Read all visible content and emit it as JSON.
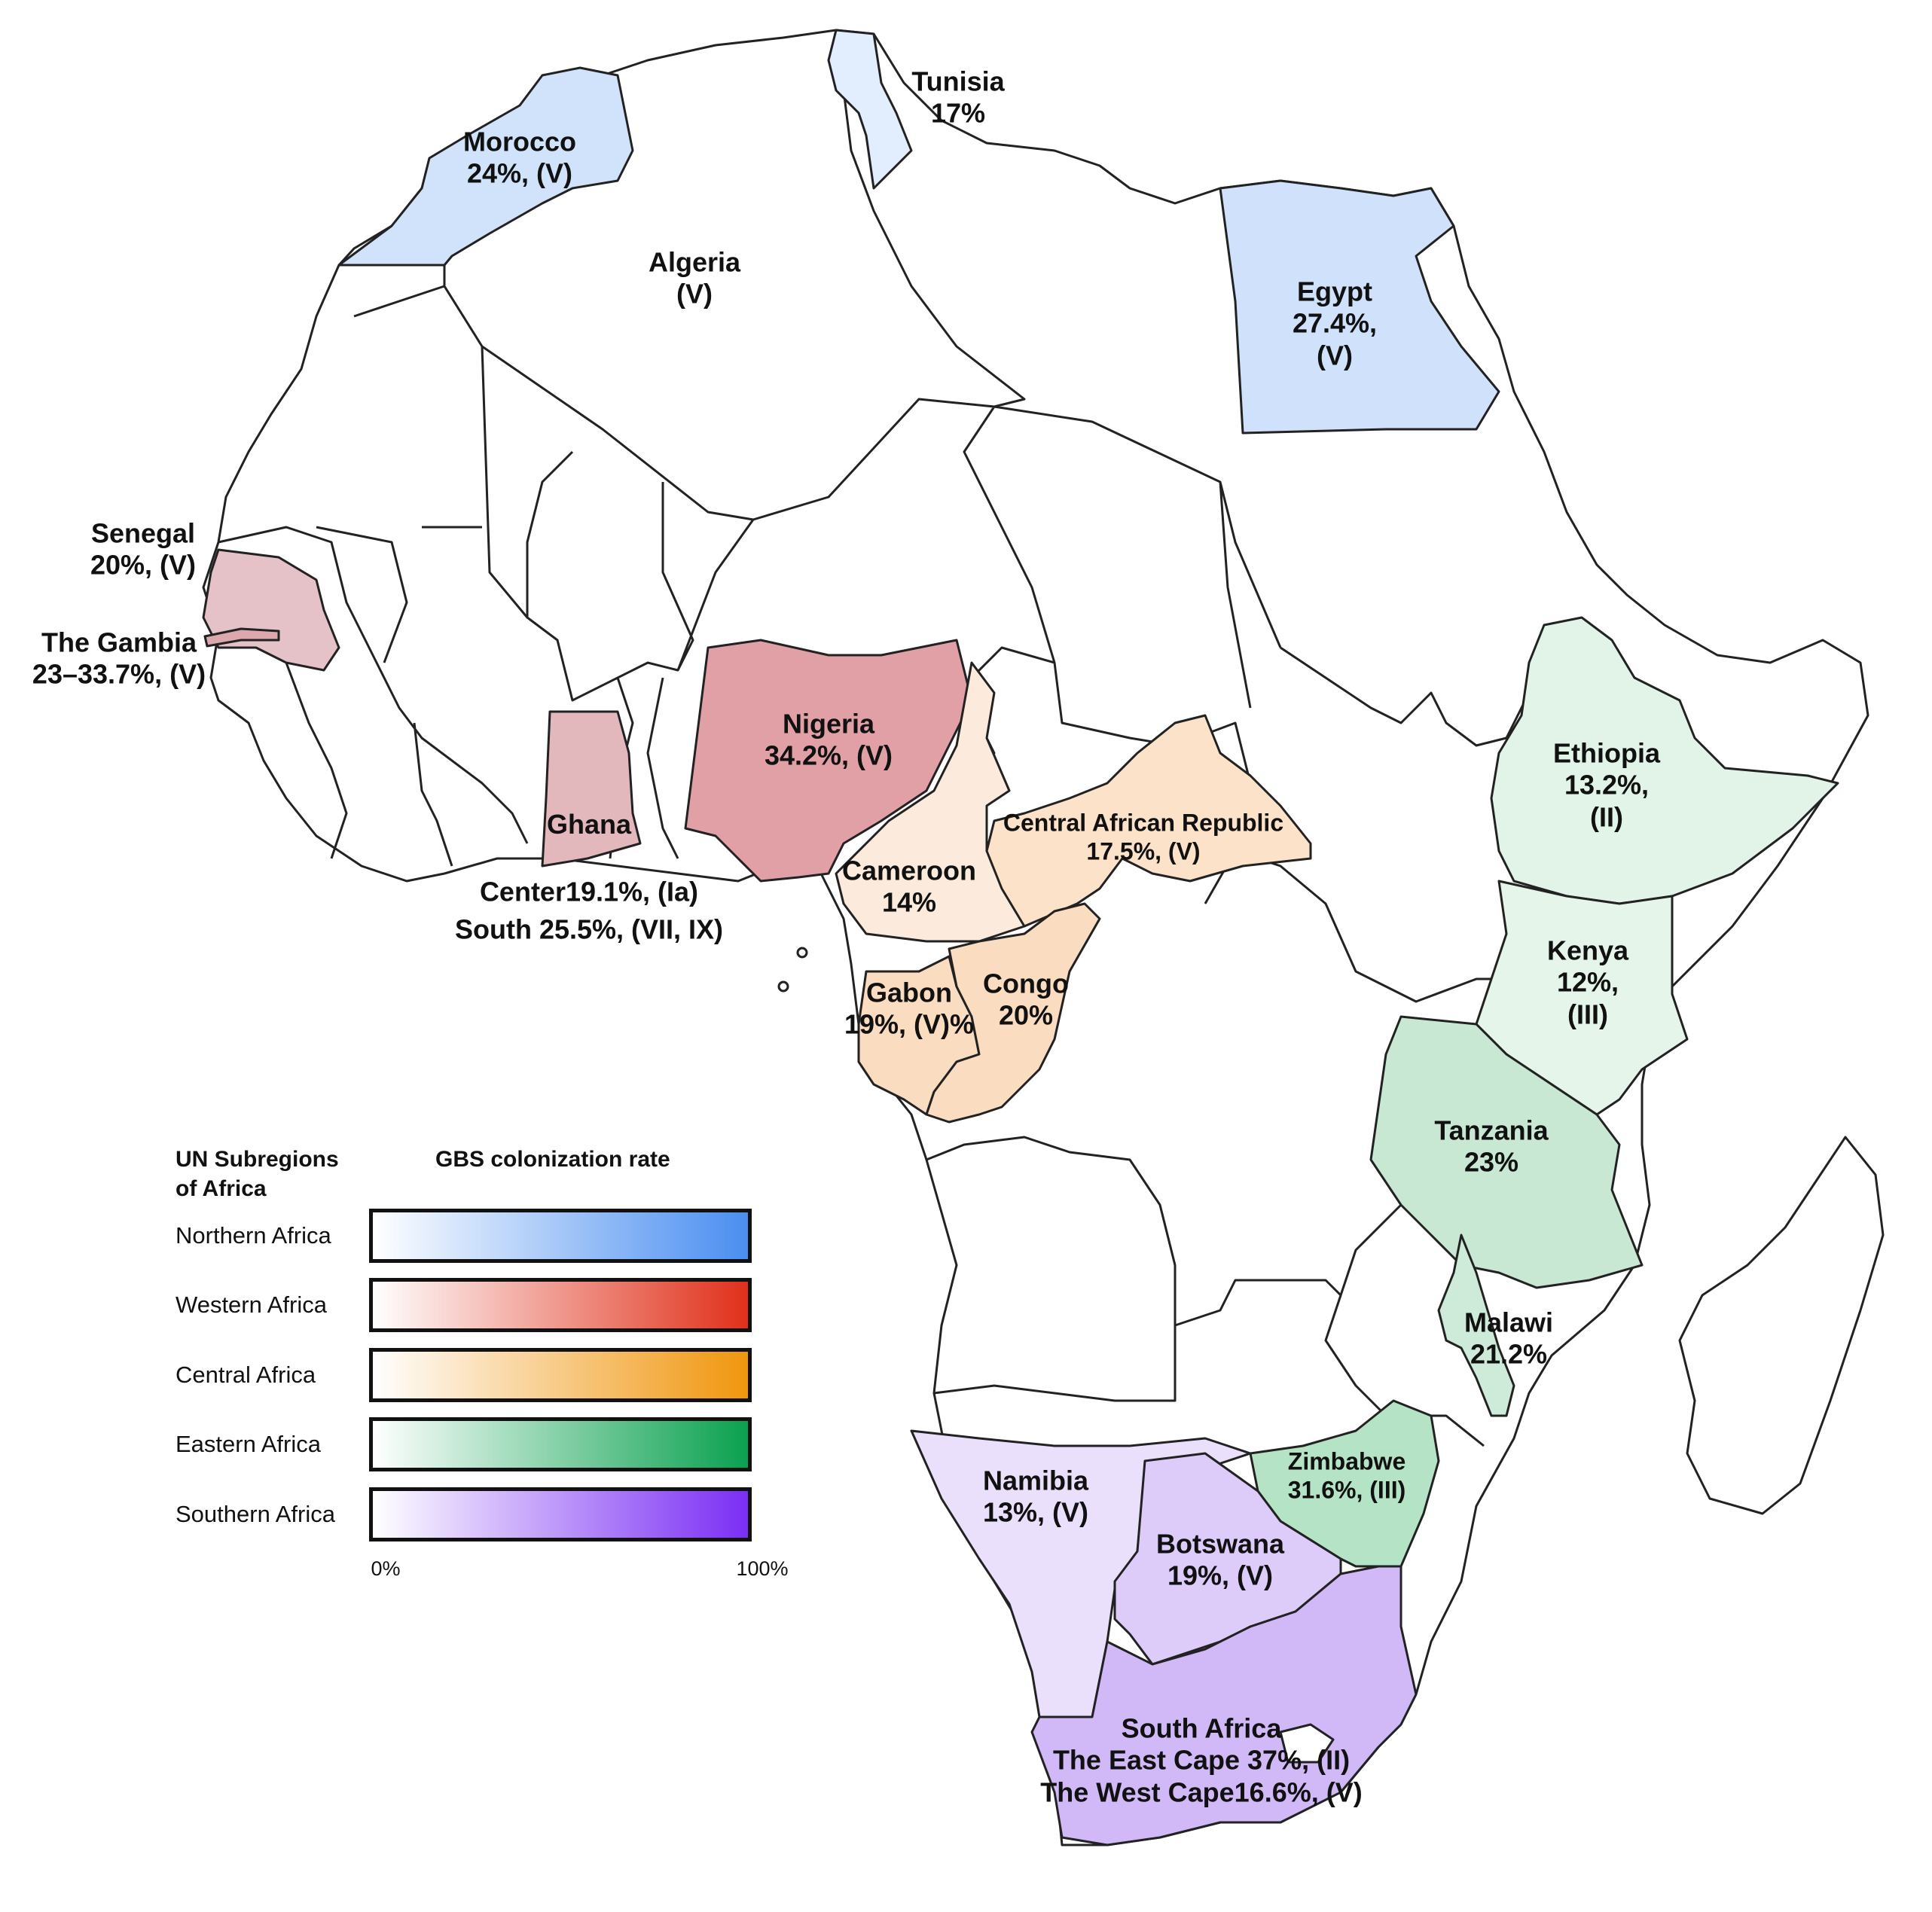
{
  "title": "",
  "countries": [
    {
      "name": "Morocco",
      "lines": [
        "Morocco",
        "24%, (V)"
      ],
      "rate": 24,
      "subregion": "Northern Africa",
      "fill": "#d1e2fb"
    },
    {
      "name": "Tunisia",
      "lines": [
        "Tunisia",
        "17%"
      ],
      "rate": 17,
      "subregion": "Northern Africa",
      "fill": "#e2edfd"
    },
    {
      "name": "Algeria",
      "lines": [
        "Algeria",
        "(V)"
      ],
      "rate": null,
      "subregion": "Northern Africa",
      "fill": "#ffffff"
    },
    {
      "name": "Egypt",
      "lines": [
        "Egypt",
        "27.4%,",
        "(V)"
      ],
      "rate": 27.4,
      "subregion": "Northern Africa",
      "fill": "#cfe1fb"
    },
    {
      "name": "Senegal",
      "lines": [
        "Senegal",
        "20%, (V)"
      ],
      "rate": 20,
      "subregion": "Western Africa",
      "fill": "#e4c2c8"
    },
    {
      "name": "The Gambia",
      "lines": [
        "The Gambia",
        "23–33.7%, (V)"
      ],
      "rate": null,
      "subregion": "Western Africa",
      "fill": "#dda7ae"
    },
    {
      "name": "Nigeria",
      "lines": [
        "Nigeria",
        "34.2%, (V)"
      ],
      "rate": 34.2,
      "subregion": "Western Africa",
      "fill": "#e0a0a6"
    },
    {
      "name": "Ghana",
      "lines": [
        "Ghana"
      ],
      "rate": null,
      "subregion": "Western Africa",
      "fill": "#e2b8bd"
    },
    {
      "name": "Ghana-detail",
      "lines": [
        "Center19.1%, (Ia)",
        "South 25.5%, (VII, IX)"
      ],
      "rate": null,
      "subregion": "Western Africa",
      "fill": "none"
    },
    {
      "name": "Cameroon",
      "lines": [
        "Cameroon",
        "14%"
      ],
      "rate": 14,
      "subregion": "Central Africa",
      "fill": "#fcebdc"
    },
    {
      "name": "Central African Republic",
      "lines": [
        "Central African Republic",
        "17.5%, (V)"
      ],
      "rate": 17.5,
      "subregion": "Central Africa",
      "fill": "#fbe2c9"
    },
    {
      "name": "Gabon",
      "lines": [
        "Gabon",
        "19%, (V)%"
      ],
      "rate": 19,
      "subregion": "Central Africa",
      "fill": "#fadcc0"
    },
    {
      "name": "Congo",
      "lines": [
        "Congo",
        "20%"
      ],
      "rate": 20,
      "subregion": "Central Africa",
      "fill": "#fadcc0"
    },
    {
      "name": "Ethiopia",
      "lines": [
        "Ethiopia",
        "13.2%,",
        "(II)"
      ],
      "rate": 13.2,
      "subregion": "Eastern Africa",
      "fill": "#e2f3e8"
    },
    {
      "name": "Kenya",
      "lines": [
        "Kenya",
        "12%,",
        "(III)"
      ],
      "rate": 12,
      "subregion": "Eastern Africa",
      "fill": "#e5f5ea"
    },
    {
      "name": "Tanzania",
      "lines": [
        "Tanzania",
        "23%"
      ],
      "rate": 23,
      "subregion": "Eastern Africa",
      "fill": "#c8e8d3"
    },
    {
      "name": "Malawi",
      "lines": [
        "Malawi",
        "21.2%"
      ],
      "rate": 21.2,
      "subregion": "Eastern Africa",
      "fill": "#cdebd8"
    },
    {
      "name": "Zimbabwe",
      "lines": [
        "Zimbabwe",
        "31.6%, (III)"
      ],
      "rate": 31.6,
      "subregion": "Eastern Africa",
      "fill": "#b5e3c5"
    },
    {
      "name": "Namibia",
      "lines": [
        "Namibia",
        "13%, (V)"
      ],
      "rate": 13,
      "subregion": "Southern Africa",
      "fill": "#ebe0fb"
    },
    {
      "name": "Botswana",
      "lines": [
        "Botswana",
        "19%, (V)"
      ],
      "rate": 19,
      "subregion": "Southern Africa",
      "fill": "#ddcbf9"
    },
    {
      "name": "South Africa",
      "lines": [
        "South Africa",
        "The East Cape 37%, (II)",
        "The West Cape16.6%, (V)"
      ],
      "rate": null,
      "subregion": "Southern Africa",
      "fill": "#d1b9f8"
    }
  ],
  "legend": {
    "row_header": "UN Subregions of Africa",
    "column_header": "GBS colonization rate",
    "rows": [
      {
        "label": "Northern Africa",
        "color": "#4a8ef0"
      },
      {
        "label": "Western Africa",
        "color": "#e0301a"
      },
      {
        "label": "Central Africa",
        "color": "#f0960e"
      },
      {
        "label": "Eastern Africa",
        "color": "#0aa14f"
      },
      {
        "label": "Southern Africa",
        "color": "#7a2ef4"
      }
    ],
    "min_label": "0%",
    "max_label": "100%"
  }
}
